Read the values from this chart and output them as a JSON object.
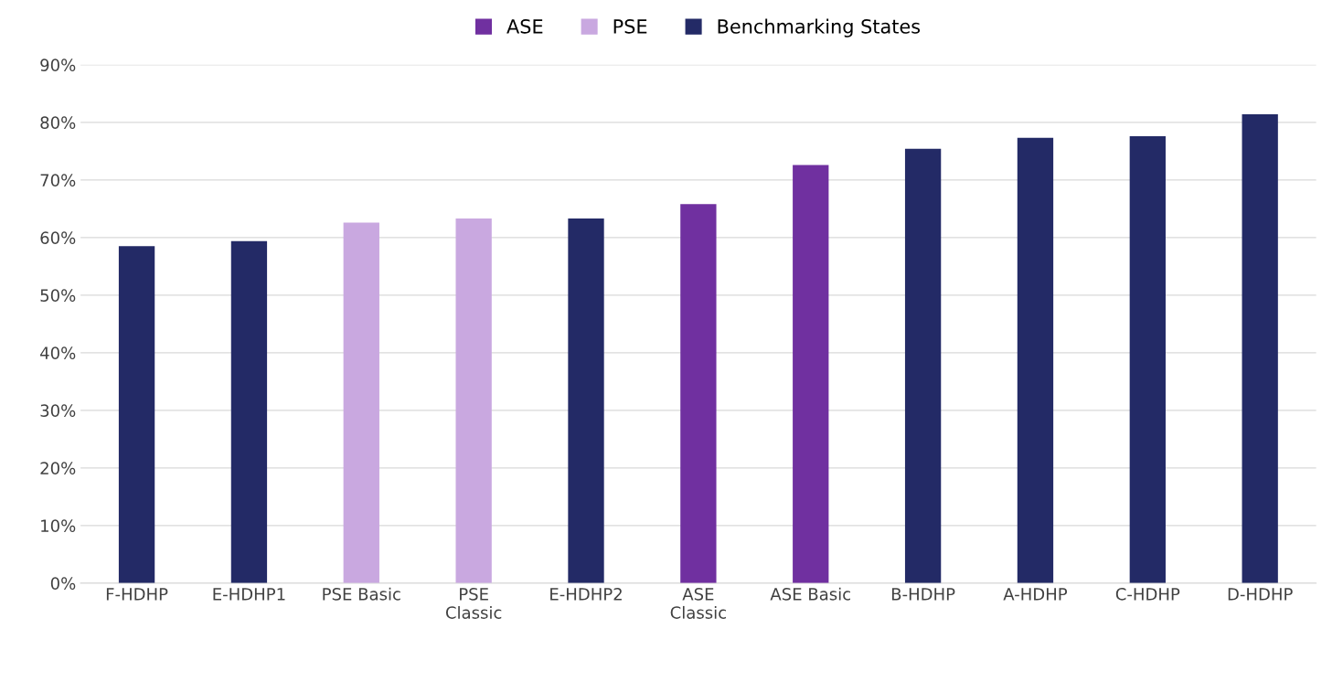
{
  "chart_data": {
    "type": "bar",
    "stacked": true,
    "categories": [
      "F-HDHP",
      "E-HDHP1",
      "PSE Basic",
      "PSE\nClassic",
      "E-HDHP2",
      "ASE\nClassic",
      "ASE Basic",
      "B-HDHP",
      "A-HDHP",
      "C-HDHP",
      "D-HDHP"
    ],
    "series": [
      {
        "name": "ASE",
        "color": "#7030a0",
        "values": [
          null,
          null,
          null,
          null,
          null,
          65.8,
          72.6,
          null,
          null,
          null,
          null
        ]
      },
      {
        "name": "PSE",
        "color": "#c9a8e0",
        "values": [
          null,
          null,
          62.6,
          63.3,
          null,
          null,
          null,
          null,
          null,
          null,
          null
        ]
      },
      {
        "name": "Benchmarking States",
        "color": "#232a66",
        "values": [
          58.5,
          59.4,
          null,
          null,
          63.3,
          null,
          null,
          75.4,
          77.3,
          77.6,
          81.4
        ]
      }
    ],
    "ylim": [
      0,
      90
    ],
    "yticks": [
      {
        "value": 0,
        "label": "0%"
      },
      {
        "value": 10,
        "label": "10%"
      },
      {
        "value": 20,
        "label": "20%"
      },
      {
        "value": 30,
        "label": "30%"
      },
      {
        "value": 40,
        "label": "40%"
      },
      {
        "value": 50,
        "label": "50%"
      },
      {
        "value": 60,
        "label": "60%"
      },
      {
        "value": 70,
        "label": "70%"
      },
      {
        "value": 80,
        "label": "80%"
      },
      {
        "value": 90,
        "label": "90%"
      }
    ],
    "grid": "y",
    "legend": "top"
  }
}
